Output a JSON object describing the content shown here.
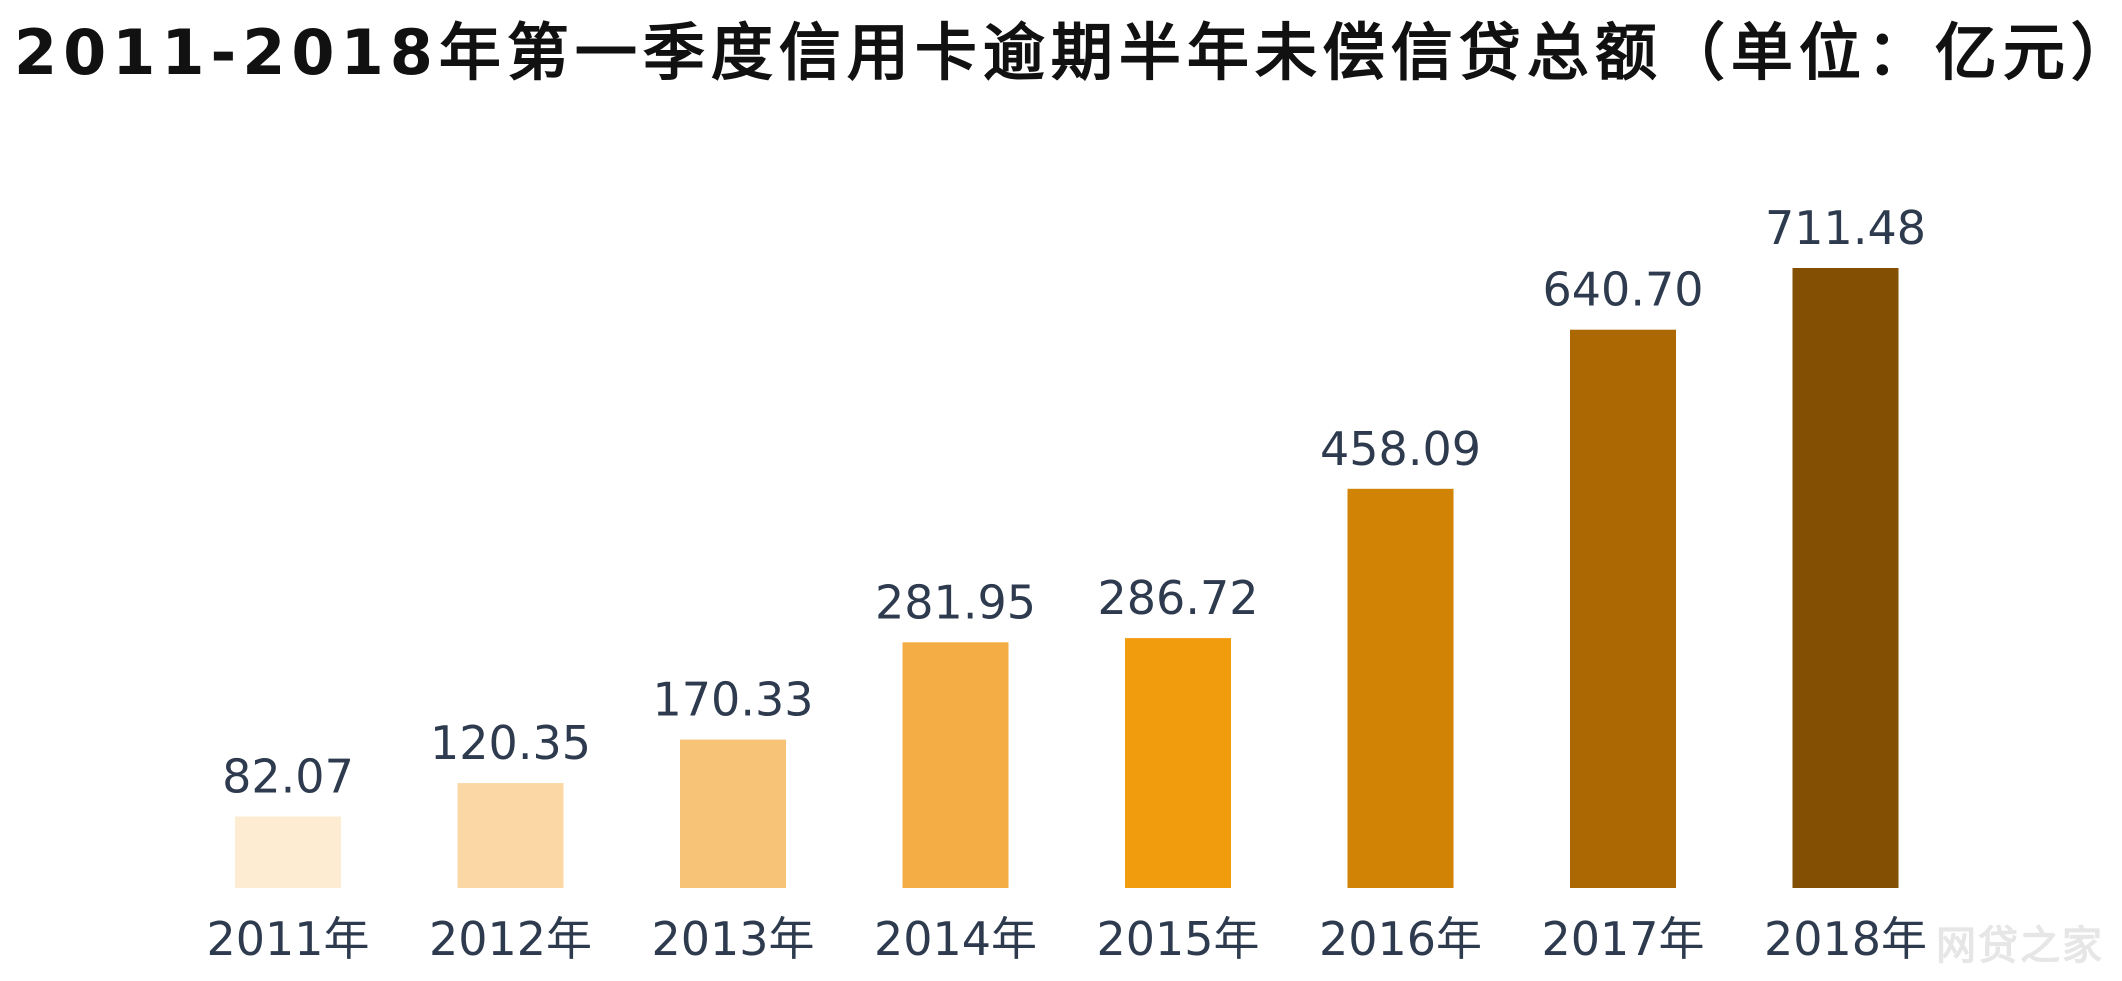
{
  "chart_data": {
    "type": "bar",
    "title": "2011-2018年第一季度信用卡逾期半年未偿信贷总额（单位：亿元）",
    "categories": [
      "2011年",
      "2012年",
      "2013年",
      "2014年",
      "2015年",
      "2016年",
      "2017年",
      "2018年"
    ],
    "values": [
      82.07,
      120.35,
      170.33,
      281.95,
      286.72,
      458.09,
      640.7,
      711.48
    ],
    "value_labels": [
      "82.07",
      "120.35",
      "170.33",
      "281.95",
      "286.72",
      "458.09",
      "640.70",
      "711.48"
    ],
    "bar_colors": [
      "#FDEBD2",
      "#FBD7A6",
      "#F7C477",
      "#F3AD44",
      "#F09C0D",
      "#D08304",
      "#AC6803",
      "#834F02"
    ],
    "label_color": "#2E3B4E",
    "grid": false,
    "legend": "none"
  },
  "watermark": "网贷之家"
}
